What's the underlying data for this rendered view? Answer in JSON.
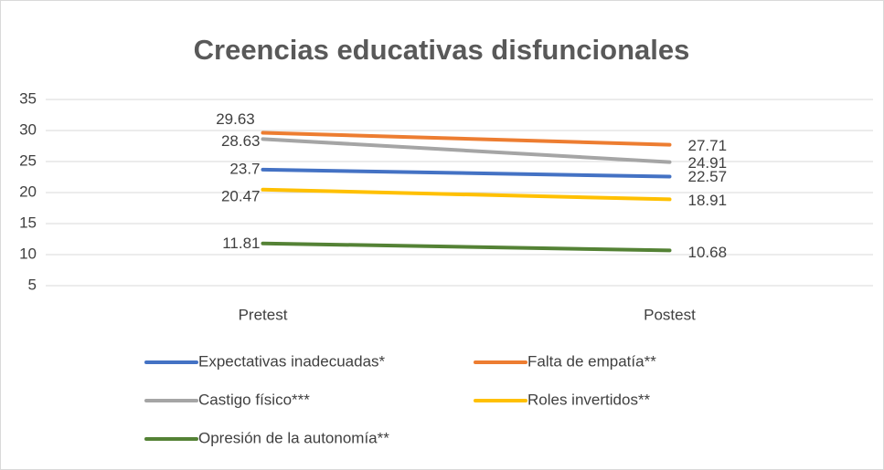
{
  "chart_data": {
    "type": "line",
    "title": "Creencias educativas disfuncionales",
    "categories": [
      "Pretest",
      "Postest"
    ],
    "series": [
      {
        "name": "Expectativas inadecuadas*",
        "color": "#4472c4",
        "values": [
          23.7,
          22.57
        ]
      },
      {
        "name": "Falta de empatía**",
        "color": "#ed7d31",
        "values": [
          29.63,
          27.71
        ]
      },
      {
        "name": "Castigo físico***",
        "color": "#a5a5a5",
        "values": [
          28.63,
          24.91
        ]
      },
      {
        "name": "Roles invertidos**",
        "color": "#ffc000",
        "values": [
          20.47,
          18.91
        ]
      },
      {
        "name": "Opresión de la autonomía**",
        "color": "#548235",
        "values": [
          11.81,
          10.68
        ]
      }
    ],
    "ylim": [
      5,
      35
    ],
    "yticks": [
      5,
      10,
      15,
      20,
      25,
      30,
      35
    ],
    "grid": true,
    "legend": "bottom"
  }
}
